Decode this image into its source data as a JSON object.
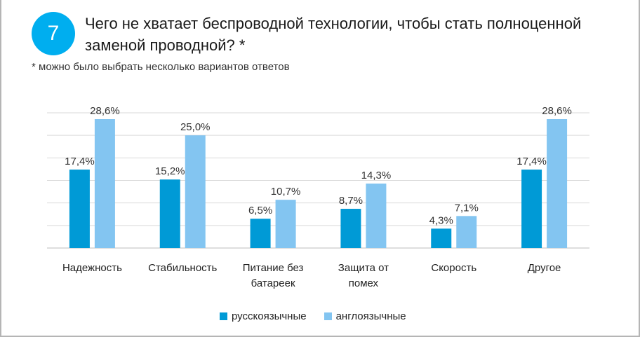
{
  "question": {
    "number": "7",
    "title": "Чего не хватает беспроводной технологии, чтобы стать полноценной заменой проводной? *",
    "note": "* можно было выбрать несколько вариантов ответов"
  },
  "chart_data": {
    "type": "bar",
    "categories": [
      [
        "Надежность"
      ],
      [
        "Стабильность"
      ],
      [
        "Питание без",
        "батареек"
      ],
      [
        "Защита от",
        "помех"
      ],
      [
        "Скорость"
      ],
      [
        "Другое"
      ]
    ],
    "series": [
      {
        "name": "русскоязычные",
        "color": "#009ad6",
        "values": [
          17.4,
          15.2,
          6.5,
          8.7,
          4.3,
          17.4
        ],
        "labels": [
          "17,4%",
          "15,2%",
          "6,5%",
          "8,7%",
          "4,3%",
          "17,4%"
        ]
      },
      {
        "name": "англоязычные",
        "color": "#83c5f1",
        "values": [
          28.6,
          25.0,
          10.7,
          14.3,
          7.1,
          28.6
        ],
        "labels": [
          "28,6%",
          "25,0%",
          "10,7%",
          "14,3%",
          "7,1%",
          "28,6%"
        ]
      }
    ],
    "ylim": [
      0,
      30
    ],
    "grid": true,
    "gridStep": 5,
    "legend": "bottom"
  }
}
